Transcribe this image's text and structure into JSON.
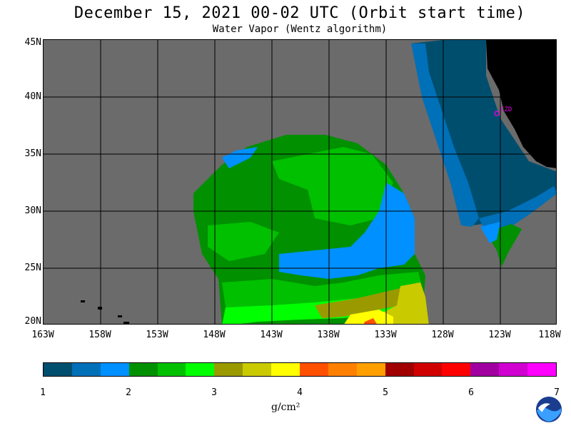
{
  "header": {
    "title": "December 15, 2021  00-02 UTC  (Orbit start time)",
    "subtitle": "Water Vapor (Wentz algorithm)"
  },
  "map": {
    "lat_labels": [
      "45N",
      "40N",
      "35N",
      "30N",
      "25N",
      "20N"
    ],
    "lon_labels": [
      "163W",
      "158W",
      "153W",
      "148W",
      "143W",
      "138W",
      "133W",
      "128W",
      "123W",
      "118W"
    ],
    "station_label": "CZD",
    "colors": {
      "no_data": "#6b6b6b",
      "land": "#000000",
      "station": "#e000e0"
    }
  },
  "colorbar": {
    "colors": [
      "#004e6e",
      "#0070b8",
      "#0090ff",
      "#009000",
      "#00c000",
      "#00ff00",
      "#9a9a00",
      "#caca00",
      "#ffff00",
      "#ff5000",
      "#ff8000",
      "#ffa000",
      "#a00000",
      "#d00000",
      "#ff0000",
      "#a000a0",
      "#d000d0",
      "#ff00ff"
    ],
    "tick_labels": [
      "1",
      "2",
      "3",
      "4",
      "5",
      "6",
      "7"
    ],
    "units": "g/cm²"
  }
}
